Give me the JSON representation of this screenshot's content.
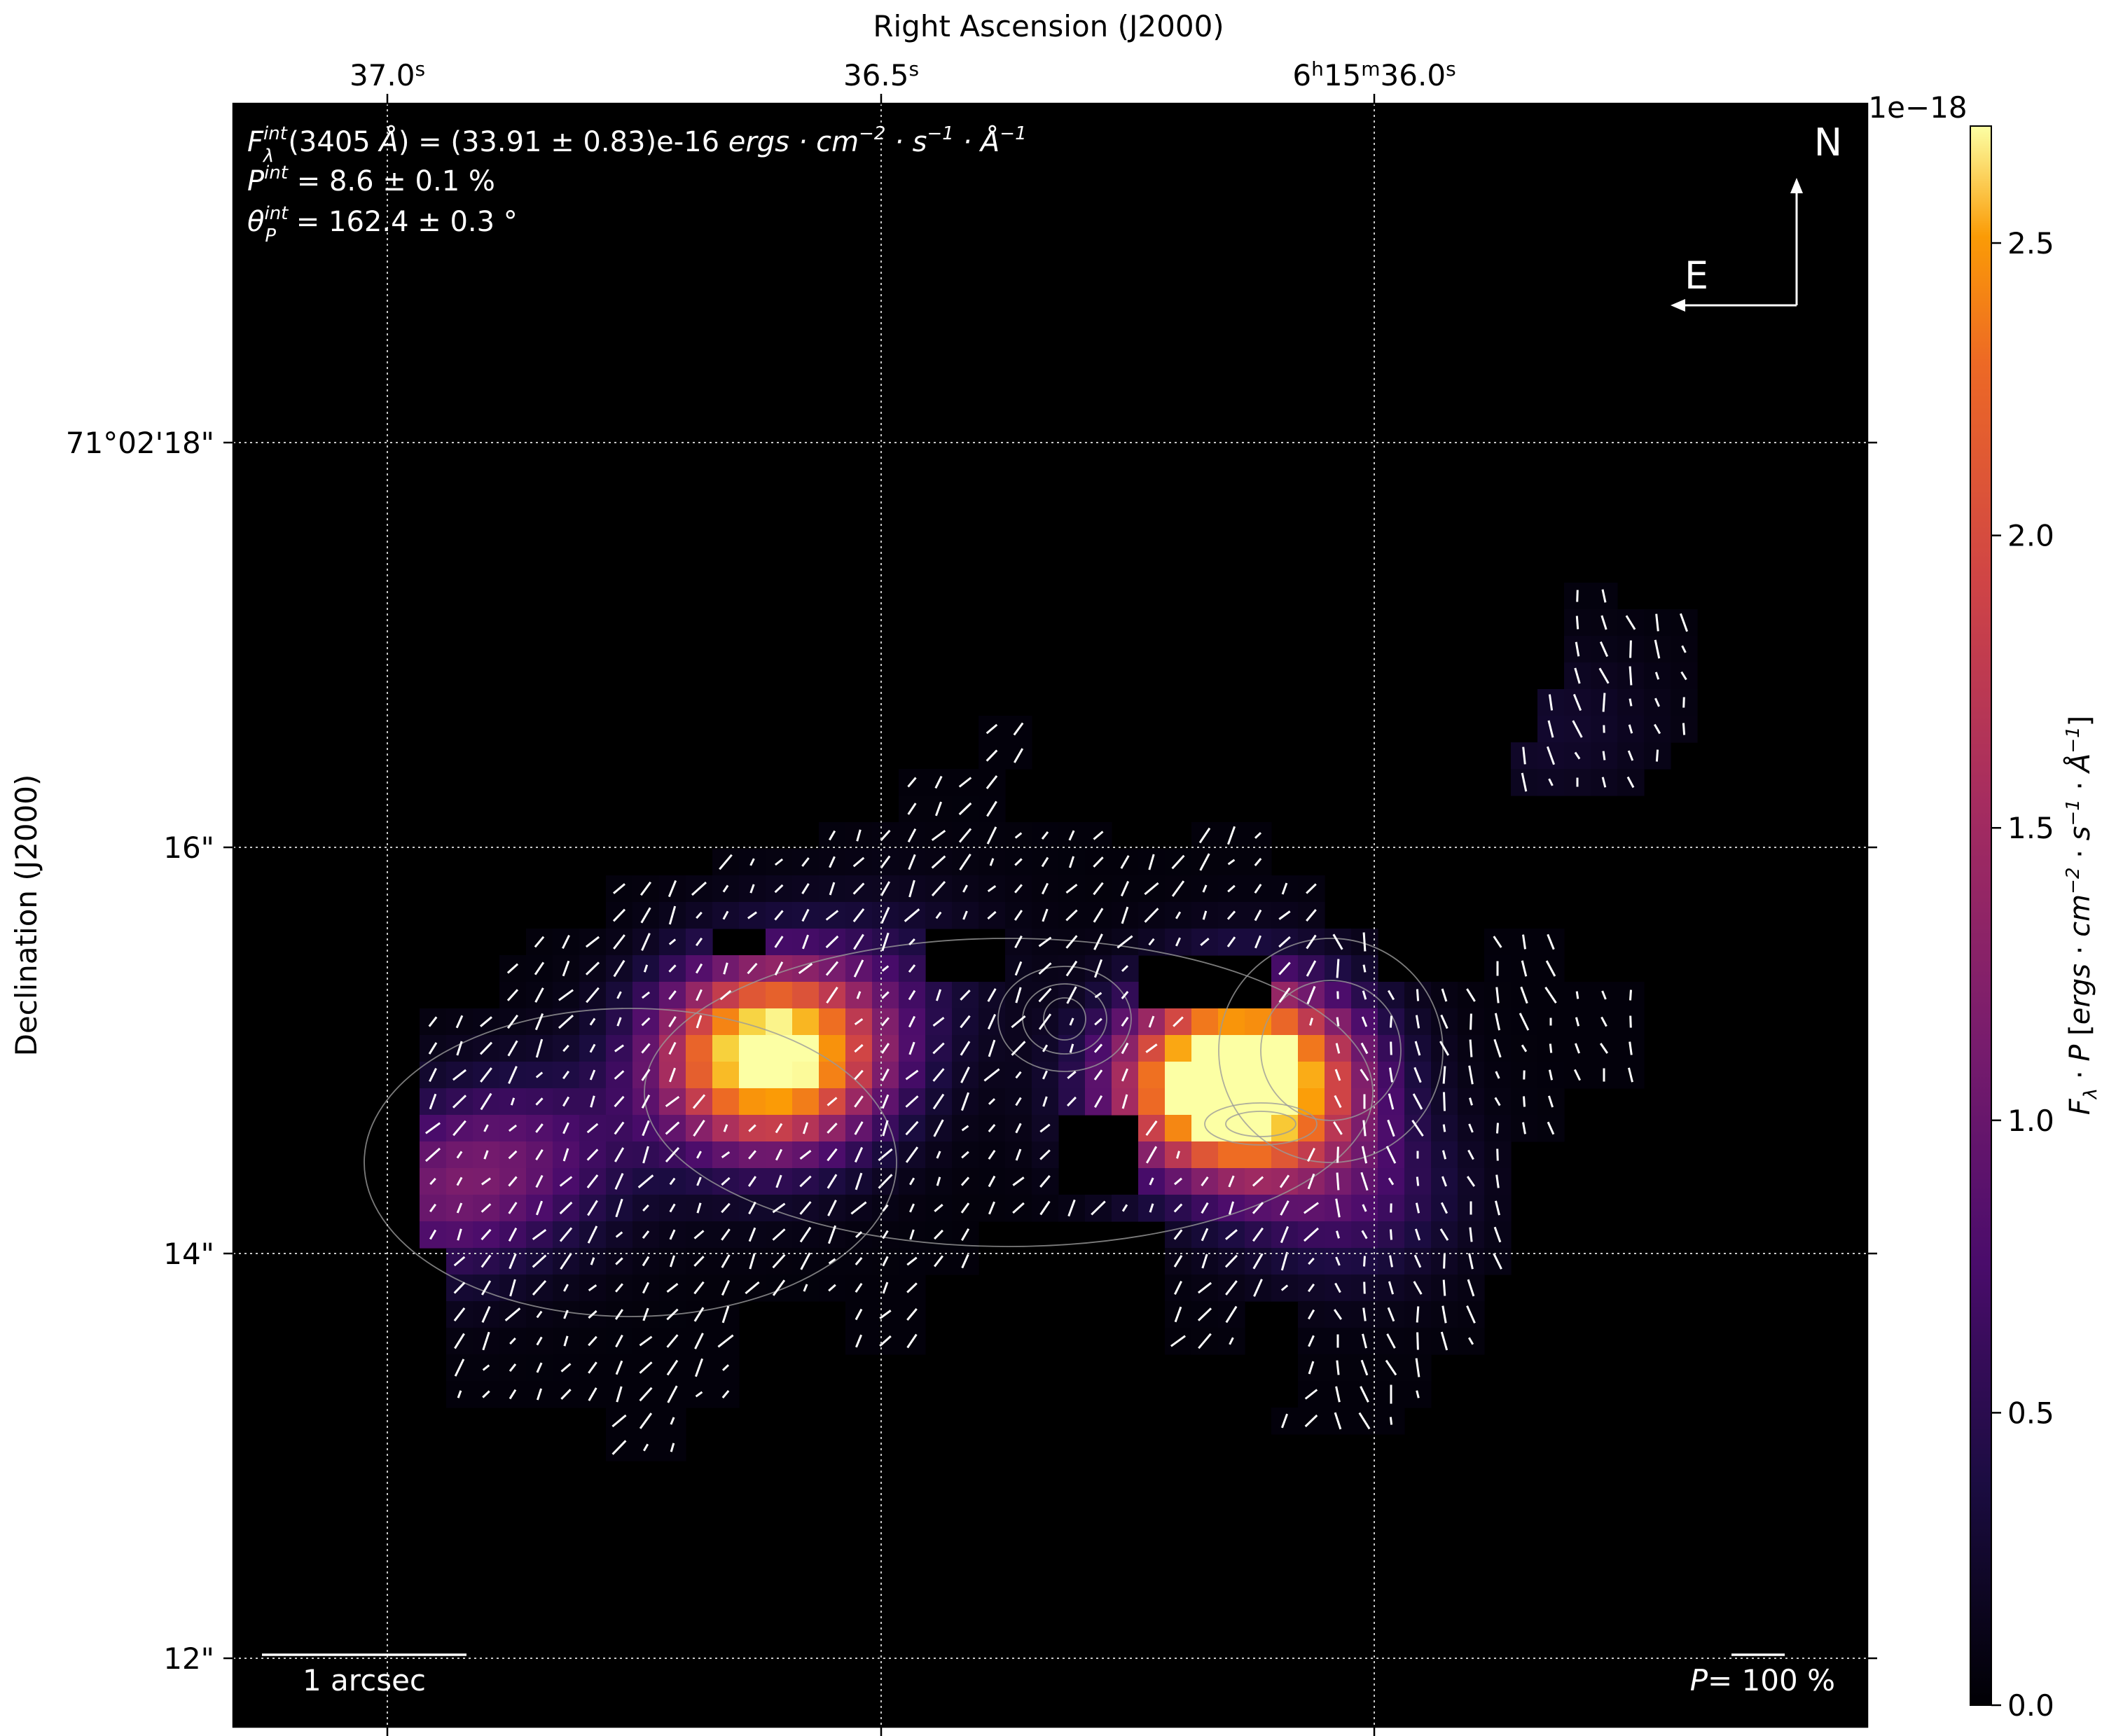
{
  "chart_data": {
    "type": "heatmap",
    "title": "",
    "xlabel": "Right Ascension (J2000)",
    "ylabel": "Declination (J2000)",
    "x_tick_labels": [
      "37.0",
      "36.5",
      "6",
      "15",
      "36.0"
    ],
    "x_ticks": [
      {
        "main": "37.0",
        "sup": "s"
      },
      {
        "main": "36.5",
        "sup": "s"
      },
      {
        "parts": [
          {
            "t": "6"
          },
          {
            "s": "h"
          },
          {
            "t": "15"
          },
          {
            "s": "m"
          },
          {
            "t": "36.0"
          },
          {
            "s": "s"
          }
        ]
      }
    ],
    "x_tick_values_s": [
      37.0,
      36.5,
      36.0
    ],
    "y_tick_labels": [
      "71°02'18\"",
      "16\"",
      "14\"",
      "12\""
    ],
    "y_tick_values_arcsec": [
      18,
      16,
      14,
      12
    ],
    "grid": true,
    "colormap": "inferno",
    "colorbar": {
      "label": "F_λ · P [ergs · cm^-2 · s^-1 · Å^-1]",
      "label_parts": {
        "f": "F",
        "lambda": "λ",
        "p": "P",
        "unit_open": "[",
        "ergs": "ergs",
        "cm": "cm",
        "cm_exp": "−2",
        "s": "s",
        "s_exp": "−1",
        "a": "Å",
        "a_exp": "−1",
        "unit_close": "]"
      },
      "scale_label": "1e−18",
      "tick_labels": [
        "0.0",
        "0.5",
        "1.0",
        "1.5",
        "2.0",
        "2.5"
      ],
      "tick_values": [
        0.0,
        0.5,
        1.0,
        1.5,
        2.0,
        2.5
      ],
      "range": [
        0.0,
        2.7
      ]
    },
    "annotations": {
      "flux_line": {
        "sym": "F",
        "sub": "λ",
        "sup": "int",
        "wl": "(3405 ",
        "ang": "Å",
        "mid": ") = (33.91 ± 0.83)e-16 ",
        "unit": "ergs · cm",
        "exp1": "−2",
        "s": " · s",
        "exp2": "−1",
        "a": " · Å",
        "exp3": "−1"
      },
      "pol_line": {
        "sym": "P",
        "sup": "int",
        "rest": " = 8.6 ± 0.1 %"
      },
      "angle_line": {
        "sym": "θ",
        "sub": "P",
        "sup": "int",
        "rest": " = 162.4 ± 0.3 °"
      },
      "compass_north": "N",
      "compass_east": "E",
      "scale_bar": "1 arcsec",
      "pol_scale": {
        "sym": "P",
        "rest": "= 100 %"
      }
    },
    "blobs": [
      {
        "ra": 36.61,
        "dec": 15.0,
        "peak": 2.7
      },
      {
        "ra": 36.15,
        "dec": 14.8,
        "peak": 2.6
      },
      {
        "ra": 36.12,
        "dec": 14.95,
        "peak": 1.25
      },
      {
        "ra": 36.62,
        "dec": 14.75,
        "peak": 0.45
      },
      {
        "ra": 36.95,
        "dec": 14.3,
        "peak": 0.75
      },
      {
        "ra": 36.85,
        "dec": 14.5,
        "peak": 0.55
      },
      {
        "ra": 36.03,
        "dec": 14.3,
        "peak": 0.6
      },
      {
        "ra": 36.48,
        "dec": 15.4,
        "peak": 0.25
      },
      {
        "ra": 35.82,
        "dec": 16.6,
        "peak": 0.2
      }
    ]
  }
}
